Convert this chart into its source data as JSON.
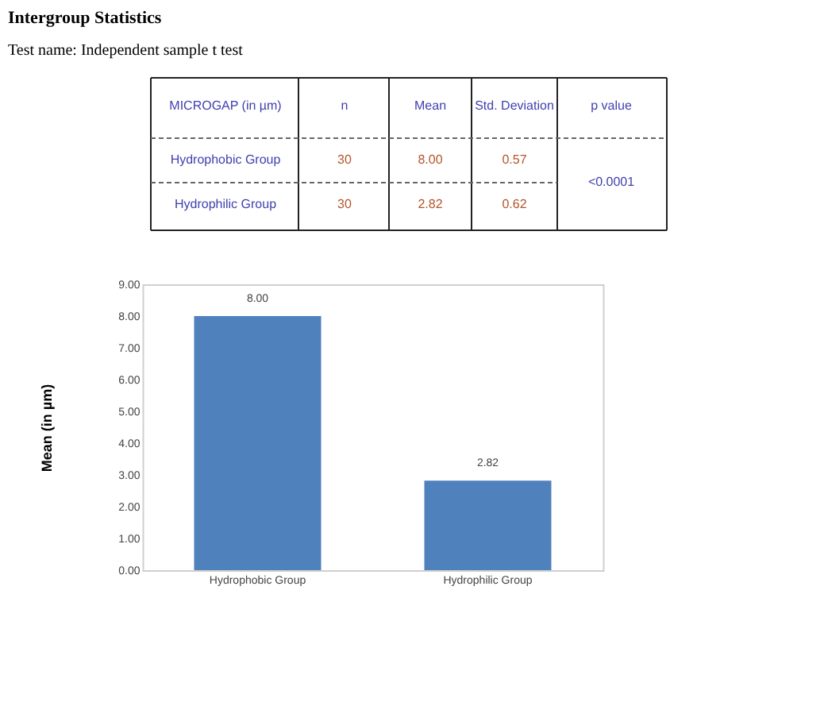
{
  "chart_data": {
    "type": "bar",
    "title": "Intergroup Statistics",
    "subtitle": "Test name: Independent sample t test",
    "ylabel": "Mean (in µm)",
    "categories": [
      "Hydrophobic Group",
      "Hydrophilic Group"
    ],
    "values": [
      8.0,
      2.82
    ],
    "color": "#4f81bd",
    "value_labels": [
      "8.00",
      "2.82"
    ],
    "ylim": [
      0,
      9
    ],
    "yticks": [
      {
        "value": 0,
        "label": "0.00"
      },
      {
        "value": 1,
        "label": "1.00"
      },
      {
        "value": 2,
        "label": "2.00"
      },
      {
        "value": 3,
        "label": "3.00"
      },
      {
        "value": 4,
        "label": "4.00"
      },
      {
        "value": 5,
        "label": "5.00"
      },
      {
        "value": 6,
        "label": "6.00"
      },
      {
        "value": 7,
        "label": "7.00"
      },
      {
        "value": 8,
        "label": "8.00"
      },
      {
        "value": 9,
        "label": "9.00"
      }
    ],
    "grid": false,
    "annotations": [
      "MICROGAP (in µm)",
      "n",
      "Mean",
      "Std. Deviation",
      "p value",
      "Hydrophobic Group",
      "30",
      "8.00",
      "0.57",
      "Hydrophilic Group",
      "30",
      "2.82",
      "0.62",
      "<0.0001"
    ]
  }
}
